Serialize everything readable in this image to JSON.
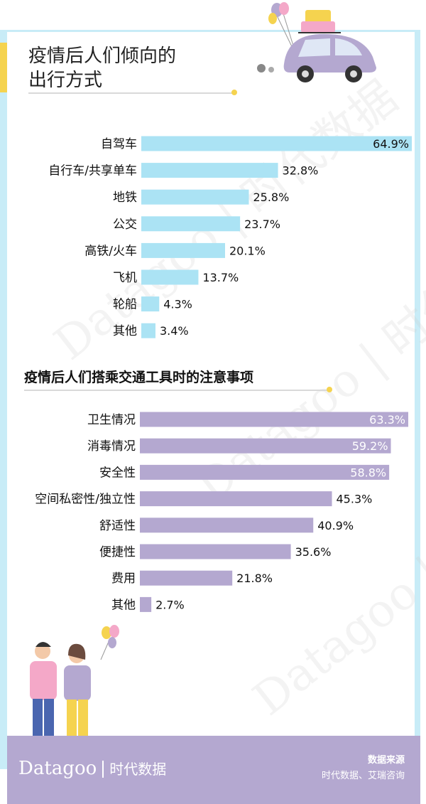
{
  "title_line1": "疫情后人们倾向的",
  "title_line2": "出行方式",
  "section2_title": "疫情后人们搭乘交通工具时的注意事项",
  "colors": {
    "bar_blue": "#abe3f4",
    "bar_purple": "#b4a8d0",
    "accent_yellow": "#f5d34f",
    "frame_blue": "#c8ecf7"
  },
  "chart_data": [
    {
      "type": "bar",
      "orientation": "horizontal",
      "title": "疫情后人们倾向的出行方式",
      "categories": [
        "自驾车",
        "自行车/共享单车",
        "地铁",
        "公交",
        "高铁/火车",
        "飞机",
        "轮船",
        "其他"
      ],
      "values": [
        64.9,
        32.8,
        25.8,
        23.7,
        20.1,
        13.7,
        4.3,
        3.4
      ],
      "labels": [
        "64.9%",
        "32.8%",
        "25.8%",
        "23.7%",
        "20.1%",
        "13.7%",
        "4.3%",
        "3.4%"
      ],
      "unit": "%",
      "xlim": [
        0,
        64.9
      ]
    },
    {
      "type": "bar",
      "orientation": "horizontal",
      "title": "疫情后人们搭乘交通工具时的注意事项",
      "categories": [
        "卫生情况",
        "消毒情况",
        "安全性",
        "空间私密性/独立性",
        "舒适性",
        "便捷性",
        "费用",
        "其他"
      ],
      "values": [
        63.3,
        59.2,
        58.8,
        45.3,
        40.9,
        35.6,
        21.8,
        2.7
      ],
      "labels": [
        "63.3%",
        "59.2%",
        "58.8%",
        "45.3%",
        "40.9%",
        "35.6%",
        "21.8%",
        "2.7%"
      ],
      "unit": "%",
      "xlim": [
        0,
        63.3
      ]
    }
  ],
  "footer": {
    "logo": "Datagoo",
    "logo_cn": "时代数据",
    "source_title": "数据来源",
    "source_text": "时代数据、艾瑞咨询"
  },
  "watermark_text": "Datagoo | 时代数据"
}
